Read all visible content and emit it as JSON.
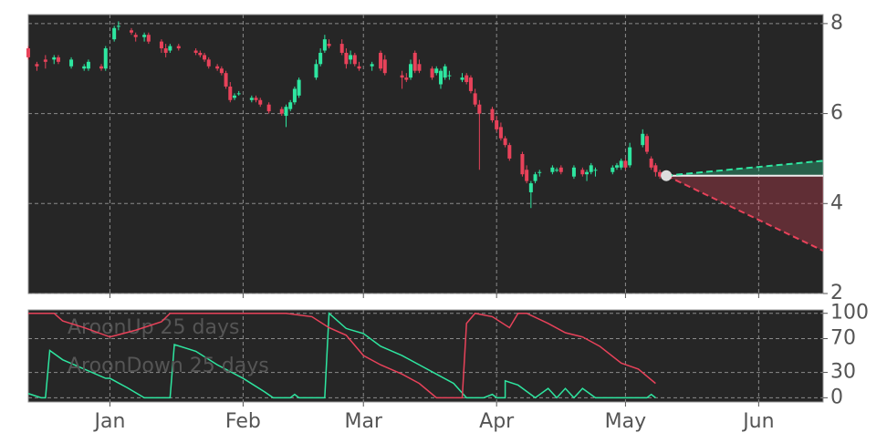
{
  "chart_data": [
    {
      "type": "candlestick",
      "xlim": [
        -19,
        166
      ],
      "xticks": [
        0,
        31,
        59,
        90,
        120,
        151
      ],
      "ylim": [
        2,
        8.2
      ],
      "yticks": [
        2,
        4,
        6,
        8
      ],
      "grid": true,
      "up_color": "#2ee6a0",
      "down_color": "#e8425a",
      "x": [
        -19,
        -17,
        -15,
        -13,
        -12,
        -9,
        -6,
        -5,
        -2,
        -1,
        1,
        2,
        5,
        6,
        8,
        9,
        12,
        13,
        14,
        16,
        20,
        21,
        22,
        23,
        25,
        26,
        27,
        28,
        29,
        30,
        33,
        34,
        35,
        37,
        40,
        41,
        42,
        43,
        44,
        48,
        49,
        50,
        51,
        54,
        55,
        56,
        57,
        58,
        61,
        63,
        64,
        68,
        69,
        70,
        71,
        72,
        75,
        76,
        77,
        78,
        79,
        82,
        83,
        84,
        85,
        86,
        89,
        90,
        91,
        92,
        93,
        96,
        97,
        98,
        99,
        100,
        103,
        104,
        105,
        108,
        110,
        111,
        112,
        113,
        117,
        118,
        119,
        120,
        121,
        124,
        125,
        126,
        127,
        128
      ],
      "open": [
        7.45,
        7.1,
        7.2,
        7.2,
        7.25,
        7.05,
        7.0,
        7.0,
        7.05,
        7.0,
        7.65,
        7.95,
        7.85,
        7.75,
        7.7,
        7.75,
        7.6,
        7.45,
        7.4,
        7.5,
        7.4,
        7.35,
        7.3,
        7.2,
        7.05,
        7.0,
        6.9,
        6.6,
        6.35,
        6.45,
        6.3,
        6.35,
        6.3,
        6.2,
        6.1,
        5.95,
        6.1,
        6.25,
        6.4,
        6.8,
        7.1,
        7.4,
        7.55,
        7.55,
        7.35,
        7.2,
        7.3,
        7.05,
        7.05,
        7.35,
        7.2,
        6.85,
        6.8,
        6.8,
        7.35,
        7.1,
        7.0,
        6.9,
        6.65,
        6.8,
        6.85,
        6.75,
        6.85,
        6.8,
        6.45,
        6.2,
        6.1,
        5.85,
        5.7,
        5.45,
        5.3,
        5.1,
        4.75,
        4.25,
        4.5,
        4.7,
        4.7,
        4.75,
        4.8,
        4.6,
        4.75,
        4.65,
        4.7,
        4.75,
        4.7,
        4.8,
        4.8,
        4.95,
        4.85,
        5.3,
        5.5,
        5.0,
        4.85,
        4.7
      ],
      "high": [
        7.5,
        7.15,
        7.3,
        7.3,
        7.3,
        7.25,
        7.1,
        7.2,
        7.1,
        7.5,
        7.95,
        8.05,
        7.9,
        7.8,
        7.8,
        7.8,
        7.65,
        7.55,
        7.55,
        7.55,
        7.45,
        7.4,
        7.35,
        7.25,
        7.1,
        7.05,
        6.95,
        6.7,
        6.45,
        6.5,
        6.4,
        6.4,
        6.35,
        6.25,
        6.15,
        6.2,
        6.3,
        6.6,
        6.8,
        7.2,
        7.45,
        7.75,
        7.65,
        7.65,
        7.45,
        7.4,
        7.35,
        7.15,
        7.15,
        7.4,
        7.3,
        6.95,
        6.9,
        7.2,
        7.4,
        7.2,
        7.05,
        7.05,
        7.0,
        7.1,
        6.95,
        6.9,
        6.9,
        6.85,
        6.55,
        6.3,
        6.15,
        5.95,
        5.8,
        5.5,
        5.35,
        5.15,
        4.85,
        4.5,
        4.7,
        4.75,
        4.85,
        4.8,
        4.85,
        4.85,
        4.8,
        4.75,
        4.9,
        4.8,
        4.85,
        4.9,
        5.0,
        5.0,
        5.35,
        5.65,
        5.55,
        5.05,
        4.9,
        4.75
      ],
      "low": [
        7.2,
        6.95,
        7.0,
        7.1,
        7.1,
        7.0,
        6.95,
        6.95,
        6.95,
        6.95,
        7.6,
        7.85,
        7.75,
        7.6,
        7.6,
        7.55,
        7.35,
        7.25,
        7.35,
        7.4,
        7.3,
        7.25,
        7.15,
        7.0,
        6.95,
        6.85,
        6.55,
        6.25,
        6.3,
        6.4,
        6.25,
        6.25,
        6.15,
        6.0,
        5.95,
        5.7,
        6.05,
        6.2,
        6.35,
        6.75,
        7.05,
        7.35,
        7.45,
        7.3,
        7.0,
        7.1,
        7.05,
        6.95,
        6.95,
        6.95,
        6.85,
        6.55,
        6.7,
        6.75,
        6.9,
        6.9,
        6.75,
        6.85,
        6.55,
        6.75,
        6.75,
        6.7,
        6.65,
        6.45,
        6.15,
        4.75,
        5.8,
        5.6,
        5.4,
        5.25,
        4.95,
        4.6,
        4.45,
        3.9,
        4.45,
        4.6,
        4.65,
        4.7,
        4.65,
        4.55,
        4.6,
        4.5,
        4.65,
        4.6,
        4.65,
        4.75,
        4.75,
        4.75,
        4.8,
        5.25,
        5.1,
        4.75,
        4.6,
        4.55
      ],
      "close": [
        7.25,
        7.05,
        7.15,
        7.25,
        7.15,
        7.2,
        7.05,
        7.15,
        7.0,
        7.45,
        7.9,
        7.95,
        7.8,
        7.7,
        7.75,
        7.6,
        7.45,
        7.35,
        7.5,
        7.45,
        7.35,
        7.3,
        7.2,
        7.05,
        7.0,
        6.9,
        6.6,
        6.3,
        6.4,
        6.45,
        6.35,
        6.3,
        6.2,
        6.05,
        6.0,
        6.15,
        6.25,
        6.55,
        6.75,
        7.1,
        7.35,
        7.65,
        7.5,
        7.35,
        7.1,
        7.3,
        7.1,
        7.0,
        7.1,
        7.0,
        6.9,
        6.8,
        6.75,
        7.1,
        6.95,
        6.95,
        6.8,
        7.0,
        6.95,
        7.05,
        6.85,
        6.8,
        6.7,
        6.5,
        6.2,
        6.0,
        5.85,
        5.65,
        5.45,
        5.3,
        5.0,
        4.65,
        4.5,
        4.45,
        4.65,
        4.7,
        4.8,
        4.75,
        4.7,
        4.8,
        4.65,
        4.7,
        4.85,
        4.75,
        4.8,
        4.85,
        4.95,
        4.8,
        5.25,
        5.55,
        5.15,
        4.8,
        4.7,
        4.6
      ],
      "forecast": {
        "x": [
          129.5,
          166
        ],
        "upper": [
          4.62,
          4.95
        ],
        "lower": [
          4.62,
          2.95
        ],
        "upper_color": "#2ee6a0",
        "lower_color": "#e8425a"
      }
    },
    {
      "type": "line",
      "xlim": [
        -19,
        166
      ],
      "xticks": [
        {
          "value": 0,
          "label": "Jan"
        },
        {
          "value": 31,
          "label": "Feb"
        },
        {
          "value": 59,
          "label": "Mar"
        },
        {
          "value": 90,
          "label": "Apr"
        },
        {
          "value": 120,
          "label": "May"
        },
        {
          "value": 151,
          "label": "Jun"
        }
      ],
      "ylim": [
        -5,
        104
      ],
      "yticks": [
        0,
        30,
        70,
        100
      ],
      "grid": true,
      "legend": "upper left",
      "series": [
        {
          "name": "AroonUp 25 days",
          "color": "#2ee6a0",
          "x": [
            -19,
            -16,
            -15,
            -14,
            -11,
            -1,
            0,
            4,
            8,
            14,
            15,
            20,
            25,
            31,
            36,
            38,
            42,
            43,
            44,
            50,
            51,
            55,
            59,
            63,
            68,
            72,
            76,
            80,
            83,
            87,
            89,
            90,
            92,
            92,
            95,
            99,
            102,
            104,
            106,
            108,
            110,
            113,
            125,
            126,
            127
          ],
          "values": [
            5,
            0,
            0,
            56,
            45,
            23,
            23,
            12,
            0,
            0,
            63,
            55,
            39,
            23,
            7,
            0,
            0,
            4,
            0,
            0,
            100,
            82,
            76,
            61,
            50,
            39,
            28,
            17,
            0,
            0,
            4,
            0,
            0,
            20,
            15,
            0,
            11,
            0,
            11,
            0,
            11,
            0,
            0,
            4,
            0
          ]
        },
        {
          "name": "AroonDown 25 days",
          "color": "#e8425a",
          "x": [
            -19,
            -13,
            -11,
            -6,
            0,
            6,
            12,
            14,
            30,
            41,
            47,
            51,
            55,
            59,
            63,
            68,
            72,
            76,
            82,
            83,
            85,
            89,
            93,
            95,
            97,
            102,
            106,
            110,
            114,
            119,
            123,
            127
          ],
          "values": [
            100,
            100,
            91,
            83,
            72,
            80,
            90,
            100,
            100,
            100,
            96,
            83,
            74,
            50,
            39,
            28,
            17,
            0,
            0,
            88,
            100,
            96,
            83,
            100,
            100,
            88,
            77,
            72,
            61,
            41,
            34,
            17
          ]
        }
      ]
    }
  ]
}
